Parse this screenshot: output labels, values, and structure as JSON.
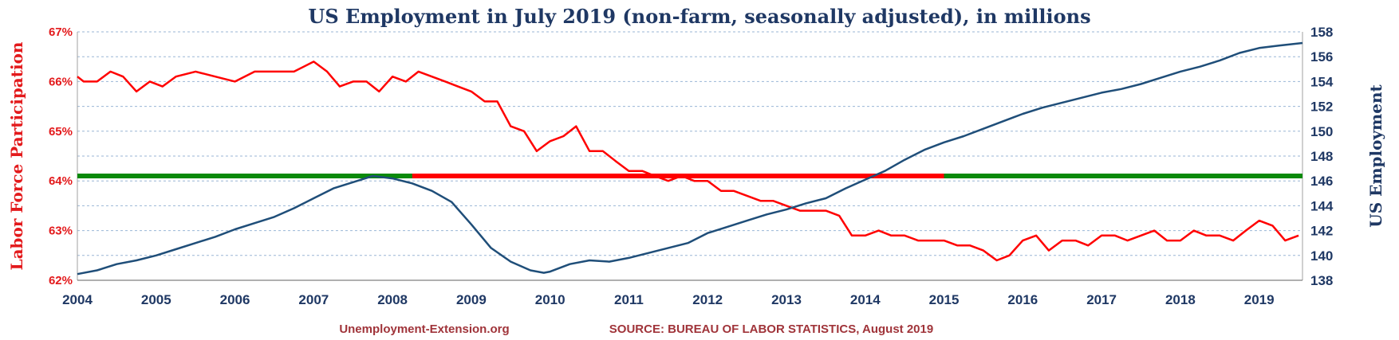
{
  "chart_data": {
    "type": "line",
    "title": "US Employment in July 2019 (non-farm, seasonally adjusted), in millions",
    "ylabel_left": "Labor Force Participation",
    "ylabel_right": "US Employment",
    "footer_left": "Unemployment-Extension.org",
    "footer_right": "SOURCE: BUREAU OF LABOR STATISTICS, August 2019",
    "x_range": [
      2004.0,
      2019.55
    ],
    "x_ticks": [
      "2004",
      "2005",
      "2006",
      "2007",
      "2008",
      "2009",
      "2010",
      "2011",
      "2012",
      "2013",
      "2014",
      "2015",
      "2016",
      "2017",
      "2018",
      "2019"
    ],
    "y_left_range": [
      62,
      67
    ],
    "y_left_ticks": [
      "62%",
      "63%",
      "64%",
      "65%",
      "66%",
      "67%"
    ],
    "y_right_range": [
      138,
      158
    ],
    "y_right_ticks": [
      "138",
      "140",
      "142",
      "144",
      "146",
      "148",
      "150",
      "152",
      "154",
      "156",
      "158"
    ],
    "grid": true,
    "colors": {
      "participation": "#ff0000",
      "employment": "#1f4e79",
      "reference_green": "#0a8a0a",
      "reference_red": "#ff0000",
      "grid": "#9ab6d6"
    },
    "reference_line": {
      "value_employment": 146.4,
      "red_segment_x": [
        2008.25,
        2015.0
      ]
    },
    "series": [
      {
        "name": "Labor Force Participation",
        "axis": "left",
        "points": [
          [
            2004.0,
            66.1
          ],
          [
            2004.08,
            66.0
          ],
          [
            2004.25,
            66.0
          ],
          [
            2004.42,
            66.2
          ],
          [
            2004.58,
            66.1
          ],
          [
            2004.75,
            65.8
          ],
          [
            2004.92,
            66.0
          ],
          [
            2005.08,
            65.9
          ],
          [
            2005.25,
            66.1
          ],
          [
            2005.5,
            66.2
          ],
          [
            2005.75,
            66.1
          ],
          [
            2006.0,
            66.0
          ],
          [
            2006.25,
            66.2
          ],
          [
            2006.5,
            66.2
          ],
          [
            2006.75,
            66.2
          ],
          [
            2007.0,
            66.4
          ],
          [
            2007.17,
            66.2
          ],
          [
            2007.33,
            65.9
          ],
          [
            2007.5,
            66.0
          ],
          [
            2007.67,
            66.0
          ],
          [
            2007.83,
            65.8
          ],
          [
            2008.0,
            66.1
          ],
          [
            2008.17,
            66.0
          ],
          [
            2008.33,
            66.2
          ],
          [
            2008.5,
            66.1
          ],
          [
            2008.67,
            66.0
          ],
          [
            2008.83,
            65.9
          ],
          [
            2009.0,
            65.8
          ],
          [
            2009.17,
            65.6
          ],
          [
            2009.33,
            65.6
          ],
          [
            2009.5,
            65.1
          ],
          [
            2009.67,
            65.0
          ],
          [
            2009.83,
            64.6
          ],
          [
            2010.0,
            64.8
          ],
          [
            2010.17,
            64.9
          ],
          [
            2010.33,
            65.1
          ],
          [
            2010.5,
            64.6
          ],
          [
            2010.67,
            64.6
          ],
          [
            2010.83,
            64.4
          ],
          [
            2011.0,
            64.2
          ],
          [
            2011.17,
            64.2
          ],
          [
            2011.33,
            64.1
          ],
          [
            2011.5,
            64.0
          ],
          [
            2011.67,
            64.1
          ],
          [
            2011.83,
            64.0
          ],
          [
            2012.0,
            64.0
          ],
          [
            2012.17,
            63.8
          ],
          [
            2012.33,
            63.8
          ],
          [
            2012.5,
            63.7
          ],
          [
            2012.67,
            63.6
          ],
          [
            2012.83,
            63.6
          ],
          [
            2013.0,
            63.5
          ],
          [
            2013.17,
            63.4
          ],
          [
            2013.33,
            63.4
          ],
          [
            2013.5,
            63.4
          ],
          [
            2013.67,
            63.3
          ],
          [
            2013.83,
            62.9
          ],
          [
            2014.0,
            62.9
          ],
          [
            2014.17,
            63.0
          ],
          [
            2014.33,
            62.9
          ],
          [
            2014.5,
            62.9
          ],
          [
            2014.67,
            62.8
          ],
          [
            2014.83,
            62.8
          ],
          [
            2015.0,
            62.8
          ],
          [
            2015.17,
            62.7
          ],
          [
            2015.33,
            62.7
          ],
          [
            2015.5,
            62.6
          ],
          [
            2015.67,
            62.4
          ],
          [
            2015.83,
            62.5
          ],
          [
            2016.0,
            62.8
          ],
          [
            2016.17,
            62.9
          ],
          [
            2016.33,
            62.6
          ],
          [
            2016.5,
            62.8
          ],
          [
            2016.67,
            62.8
          ],
          [
            2016.83,
            62.7
          ],
          [
            2017.0,
            62.9
          ],
          [
            2017.17,
            62.9
          ],
          [
            2017.33,
            62.8
          ],
          [
            2017.5,
            62.9
          ],
          [
            2017.67,
            63.0
          ],
          [
            2017.83,
            62.8
          ],
          [
            2018.0,
            62.8
          ],
          [
            2018.17,
            63.0
          ],
          [
            2018.33,
            62.9
          ],
          [
            2018.5,
            62.9
          ],
          [
            2018.67,
            62.8
          ],
          [
            2018.83,
            63.0
          ],
          [
            2019.0,
            63.2
          ],
          [
            2019.17,
            63.1
          ],
          [
            2019.33,
            62.8
          ],
          [
            2019.5,
            62.9
          ]
        ]
      },
      {
        "name": "US Employment",
        "axis": "right",
        "points": [
          [
            2004.0,
            138.5
          ],
          [
            2004.25,
            138.8
          ],
          [
            2004.5,
            139.3
          ],
          [
            2004.75,
            139.6
          ],
          [
            2005.0,
            140.0
          ],
          [
            2005.25,
            140.5
          ],
          [
            2005.5,
            141.0
          ],
          [
            2005.75,
            141.5
          ],
          [
            2006.0,
            142.1
          ],
          [
            2006.25,
            142.6
          ],
          [
            2006.5,
            143.1
          ],
          [
            2006.75,
            143.8
          ],
          [
            2007.0,
            144.6
          ],
          [
            2007.25,
            145.4
          ],
          [
            2007.5,
            145.9
          ],
          [
            2007.75,
            146.4
          ],
          [
            2008.0,
            146.2
          ],
          [
            2008.25,
            145.8
          ],
          [
            2008.5,
            145.2
          ],
          [
            2008.75,
            144.3
          ],
          [
            2009.0,
            142.5
          ],
          [
            2009.25,
            140.6
          ],
          [
            2009.5,
            139.5
          ],
          [
            2009.75,
            138.8
          ],
          [
            2009.92,
            138.6
          ],
          [
            2010.0,
            138.7
          ],
          [
            2010.25,
            139.3
          ],
          [
            2010.5,
            139.6
          ],
          [
            2010.75,
            139.5
          ],
          [
            2011.0,
            139.8
          ],
          [
            2011.25,
            140.2
          ],
          [
            2011.5,
            140.6
          ],
          [
            2011.75,
            141.0
          ],
          [
            2012.0,
            141.8
          ],
          [
            2012.25,
            142.3
          ],
          [
            2012.5,
            142.8
          ],
          [
            2012.75,
            143.3
          ],
          [
            2013.0,
            143.7
          ],
          [
            2013.25,
            144.2
          ],
          [
            2013.5,
            144.6
          ],
          [
            2013.75,
            145.4
          ],
          [
            2014.0,
            146.1
          ],
          [
            2014.25,
            146.8
          ],
          [
            2014.5,
            147.7
          ],
          [
            2014.75,
            148.5
          ],
          [
            2015.0,
            149.1
          ],
          [
            2015.25,
            149.6
          ],
          [
            2015.5,
            150.2
          ],
          [
            2015.75,
            150.8
          ],
          [
            2016.0,
            151.4
          ],
          [
            2016.25,
            151.9
          ],
          [
            2016.5,
            152.3
          ],
          [
            2016.75,
            152.7
          ],
          [
            2017.0,
            153.1
          ],
          [
            2017.25,
            153.4
          ],
          [
            2017.5,
            153.8
          ],
          [
            2017.75,
            154.3
          ],
          [
            2018.0,
            154.8
          ],
          [
            2018.25,
            155.2
          ],
          [
            2018.5,
            155.7
          ],
          [
            2018.75,
            156.3
          ],
          [
            2019.0,
            156.7
          ],
          [
            2019.25,
            156.9
          ],
          [
            2019.55,
            157.1
          ]
        ]
      }
    ]
  }
}
